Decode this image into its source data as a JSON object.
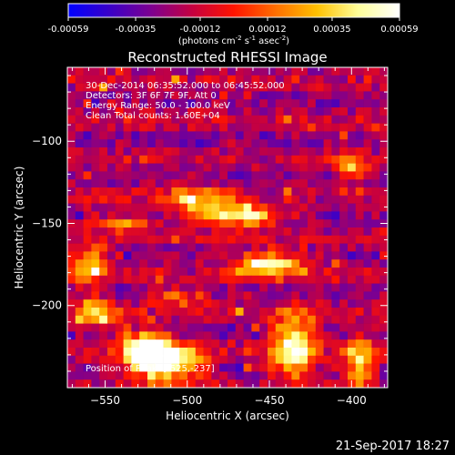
{
  "colorbar": {
    "tick_labels": [
      "-0.00059",
      "-0.00035",
      "-0.00012",
      "0.00012",
      "0.00035",
      "0.00059"
    ],
    "tick_values": [
      -0.00059,
      -0.00035,
      -0.00012,
      0.00012,
      0.00035,
      0.00059
    ],
    "range": [
      -0.00059,
      0.00059
    ],
    "units_prefix": "(photons cm",
    "units_sup1": "-2",
    "units_mid": " s",
    "units_sup2": "-1",
    "units_mid2": " asec",
    "units_sup3": "-2",
    "units_suffix": ")",
    "colormap": [
      "#0000ff",
      "#3a00c8",
      "#7d0090",
      "#c60040",
      "#ff1400",
      "#ff6e00",
      "#ffc000",
      "#ffff9a",
      "#ffffff"
    ]
  },
  "chart_data": {
    "type": "heatmap",
    "title": "Reconstructed RHESSI Image",
    "xlabel": "Heliocentric X (arcsec)",
    "ylabel": "Heliocentric Y (arcsec)",
    "xlim": [
      -573,
      -378
    ],
    "ylim": [
      -250,
      -55
    ],
    "x_ticks": [
      -550,
      -500,
      -450,
      -400
    ],
    "x_tick_labels": [
      "−550",
      "−500",
      "−450",
      "−400"
    ],
    "y_ticks": [
      -200,
      -150,
      -100
    ],
    "y_tick_labels": [
      "−200",
      "−150",
      "−100"
    ],
    "value_range": [
      -0.00059,
      0.00059
    ],
    "grid": false,
    "annotations": [
      "30-Dec-2014 06:35:52.000 to 06:45:52.000",
      "Detectors: 3F 6F 7F 9F, Att 0",
      "Energy Range: 50.0 - 100.0 keV",
      "Clean     Total counts: 1.60E+04"
    ],
    "peak_label": "Position of Peak: [-525,-237]",
    "peak": [
      -525,
      -237
    ],
    "grid_size": [
      40,
      40
    ],
    "hot_spots": [
      {
        "x": -515,
        "y": -235,
        "sx": 14,
        "sy": 8,
        "v": 1.0
      },
      {
        "x": -525,
        "y": -225,
        "sx": 10,
        "sy": 6,
        "v": 0.8
      },
      {
        "x": -470,
        "y": -145,
        "sx": 18,
        "sy": 4,
        "v": 0.85
      },
      {
        "x": -450,
        "y": -175,
        "sx": 15,
        "sy": 5,
        "v": 0.75
      },
      {
        "x": -435,
        "y": -225,
        "sx": 10,
        "sy": 14,
        "v": 0.8
      },
      {
        "x": -540,
        "y": -150,
        "sx": 12,
        "sy": 3,
        "v": 0.5
      },
      {
        "x": -560,
        "y": -175,
        "sx": 8,
        "sy": 8,
        "v": 0.6
      },
      {
        "x": -555,
        "y": -205,
        "sx": 10,
        "sy": 6,
        "v": 0.55
      },
      {
        "x": -395,
        "y": -235,
        "sx": 6,
        "sy": 12,
        "v": 0.6
      },
      {
        "x": -400,
        "y": -115,
        "sx": 6,
        "sy": 6,
        "v": 0.5
      },
      {
        "x": -495,
        "y": -135,
        "sx": 14,
        "sy": 5,
        "v": 0.45
      },
      {
        "x": -505,
        "y": -195,
        "sx": 12,
        "sy": 4,
        "v": 0.4
      }
    ]
  },
  "timestamp": "21-Sep-2017 18:27"
}
